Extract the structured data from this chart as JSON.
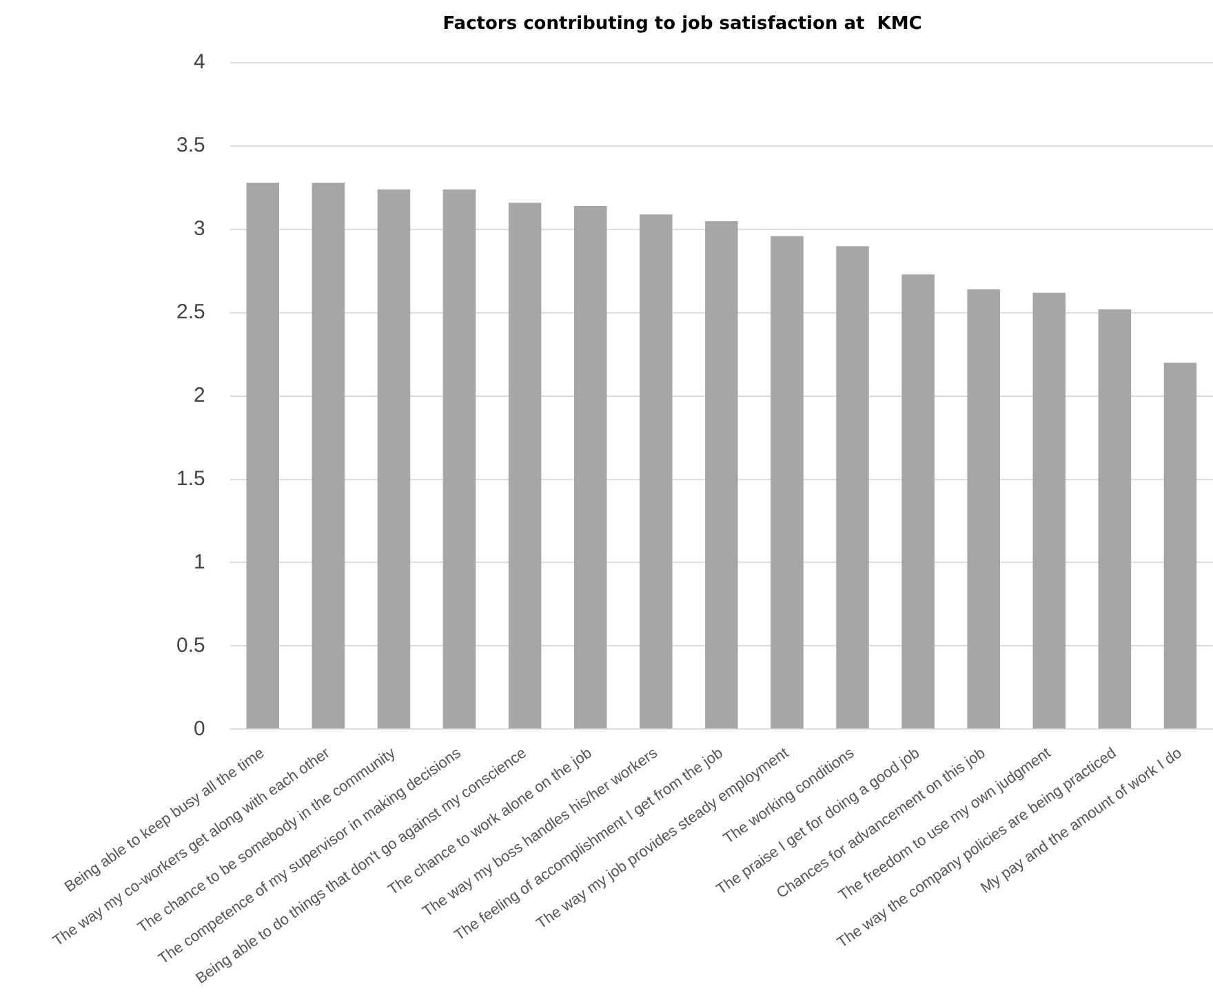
{
  "chart_data": {
    "type": "bar",
    "title": "Factors contributing to job satisfaction at  KMC",
    "categories": [
      "Being able to keep busy all the time",
      "The way my co-workers get along with each other",
      "The chance to be somebody in the community",
      "The competence of my supervisor in making decisions",
      "Being able to do things that don't go against my conscience",
      "The chance to work alone on the job",
      "The way my boss handles his/her workers",
      "The feeling of accomplishment I get from the job",
      "The way my job provides steady employment",
      "The working conditions",
      "The praise I get for doing a good job",
      "Chances for advancement on this job",
      "The freedom to use my own judgment",
      "The way the company policies are being practiced",
      "My pay and the amount of work I do"
    ],
    "values": [
      3.28,
      3.28,
      3.24,
      3.24,
      3.16,
      3.14,
      3.09,
      3.05,
      2.96,
      2.9,
      2.73,
      2.64,
      2.62,
      2.52,
      2.2
    ],
    "color": "#a6a6a6",
    "ylim": [
      0,
      4
    ],
    "yticks": [
      0,
      0.5,
      1,
      1.5,
      2,
      2.5,
      3,
      3.5,
      4
    ],
    "grid": "y"
  }
}
